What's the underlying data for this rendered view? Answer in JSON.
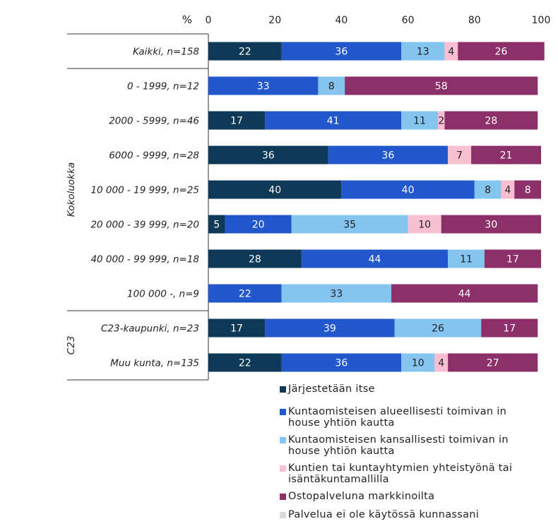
{
  "chart_data": {
    "type": "bar",
    "orientation": "horizontal",
    "stacked": true,
    "xlabel": "%",
    "xlim": [
      0,
      100
    ],
    "xticks": [
      0,
      20,
      40,
      60,
      80,
      100
    ],
    "grid": false,
    "legend_position": "bottom",
    "groups": [
      {
        "label": "",
        "rows": [
          0
        ]
      },
      {
        "label": "Kokoluokka",
        "rows": [
          1,
          2,
          3,
          4,
          5,
          6,
          7
        ]
      },
      {
        "label": "C23",
        "rows": [
          8,
          9
        ]
      }
    ],
    "categories": [
      "Kaikki, n=158",
      "0 - 1999, n=12",
      "2000 - 5999, n=46",
      "6000 - 9999, n=28",
      "10 000 - 19 999, n=25",
      "20 000 - 39 999, n=20",
      "40 000 - 99 999, n=18",
      "100 000 -, n=9",
      "C23-kaupunki, n=23",
      "Muu kunta, n=135"
    ],
    "series": [
      {
        "name": "Järjestetään itse",
        "color": "#0e3a57",
        "label_color": "#ffffff",
        "values": [
          22,
          0,
          17,
          36,
          40,
          5,
          28,
          0,
          17,
          22
        ]
      },
      {
        "name": "Kuntaomisteisen alueellisesti toimivan in house yhtiön kautta",
        "color": "#2357cc",
        "label_color": "#ffffff",
        "values": [
          36,
          33,
          41,
          36,
          40,
          20,
          44,
          22,
          39,
          36
        ]
      },
      {
        "name": "Kuntaomisteisen kansallisesti toimivan in house yhtiön kautta",
        "color": "#84c4ee",
        "label_color": "#222222",
        "values": [
          13,
          8,
          11,
          0,
          8,
          35,
          11,
          33,
          26,
          10
        ]
      },
      {
        "name": "Kuntien tai kuntayhtymien yhteistyönä tai isäntäkuntamallilla",
        "color": "#f7bfd0",
        "label_color": "#222222",
        "values": [
          4,
          0,
          2,
          7,
          4,
          10,
          0,
          0,
          0,
          4
        ]
      },
      {
        "name": "Ostopalveluna markkinoilta",
        "color": "#8d2f68",
        "label_color": "#ffffff",
        "values": [
          26,
          58,
          28,
          21,
          8,
          30,
          17,
          44,
          17,
          27
        ]
      },
      {
        "name": "Palvelua ei ole käytössä kunnassani",
        "color": "#d9d9d9",
        "label_color": "#222222",
        "values": [
          0,
          0,
          0,
          0,
          0,
          0,
          0,
          0,
          0,
          0
        ]
      }
    ]
  }
}
